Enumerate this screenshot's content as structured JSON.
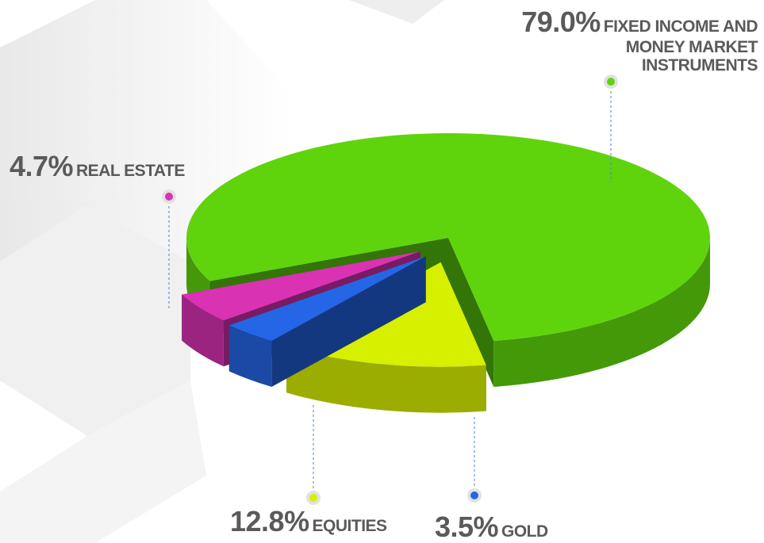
{
  "chart_data": {
    "type": "pie",
    "categories": [
      "FIXED INCOME AND MONEY MARKET INSTRUMENTS",
      "EQUITIES",
      "GOLD",
      "REAL ESTATE"
    ],
    "values": [
      79.0,
      12.8,
      3.5,
      4.7
    ],
    "value_labels": [
      "79.0%",
      "12.8%",
      "3.5%",
      "4.7%"
    ],
    "colors": [
      "#5fd40c",
      "#d6f000",
      "#2566e6",
      "#d932b3"
    ]
  }
}
